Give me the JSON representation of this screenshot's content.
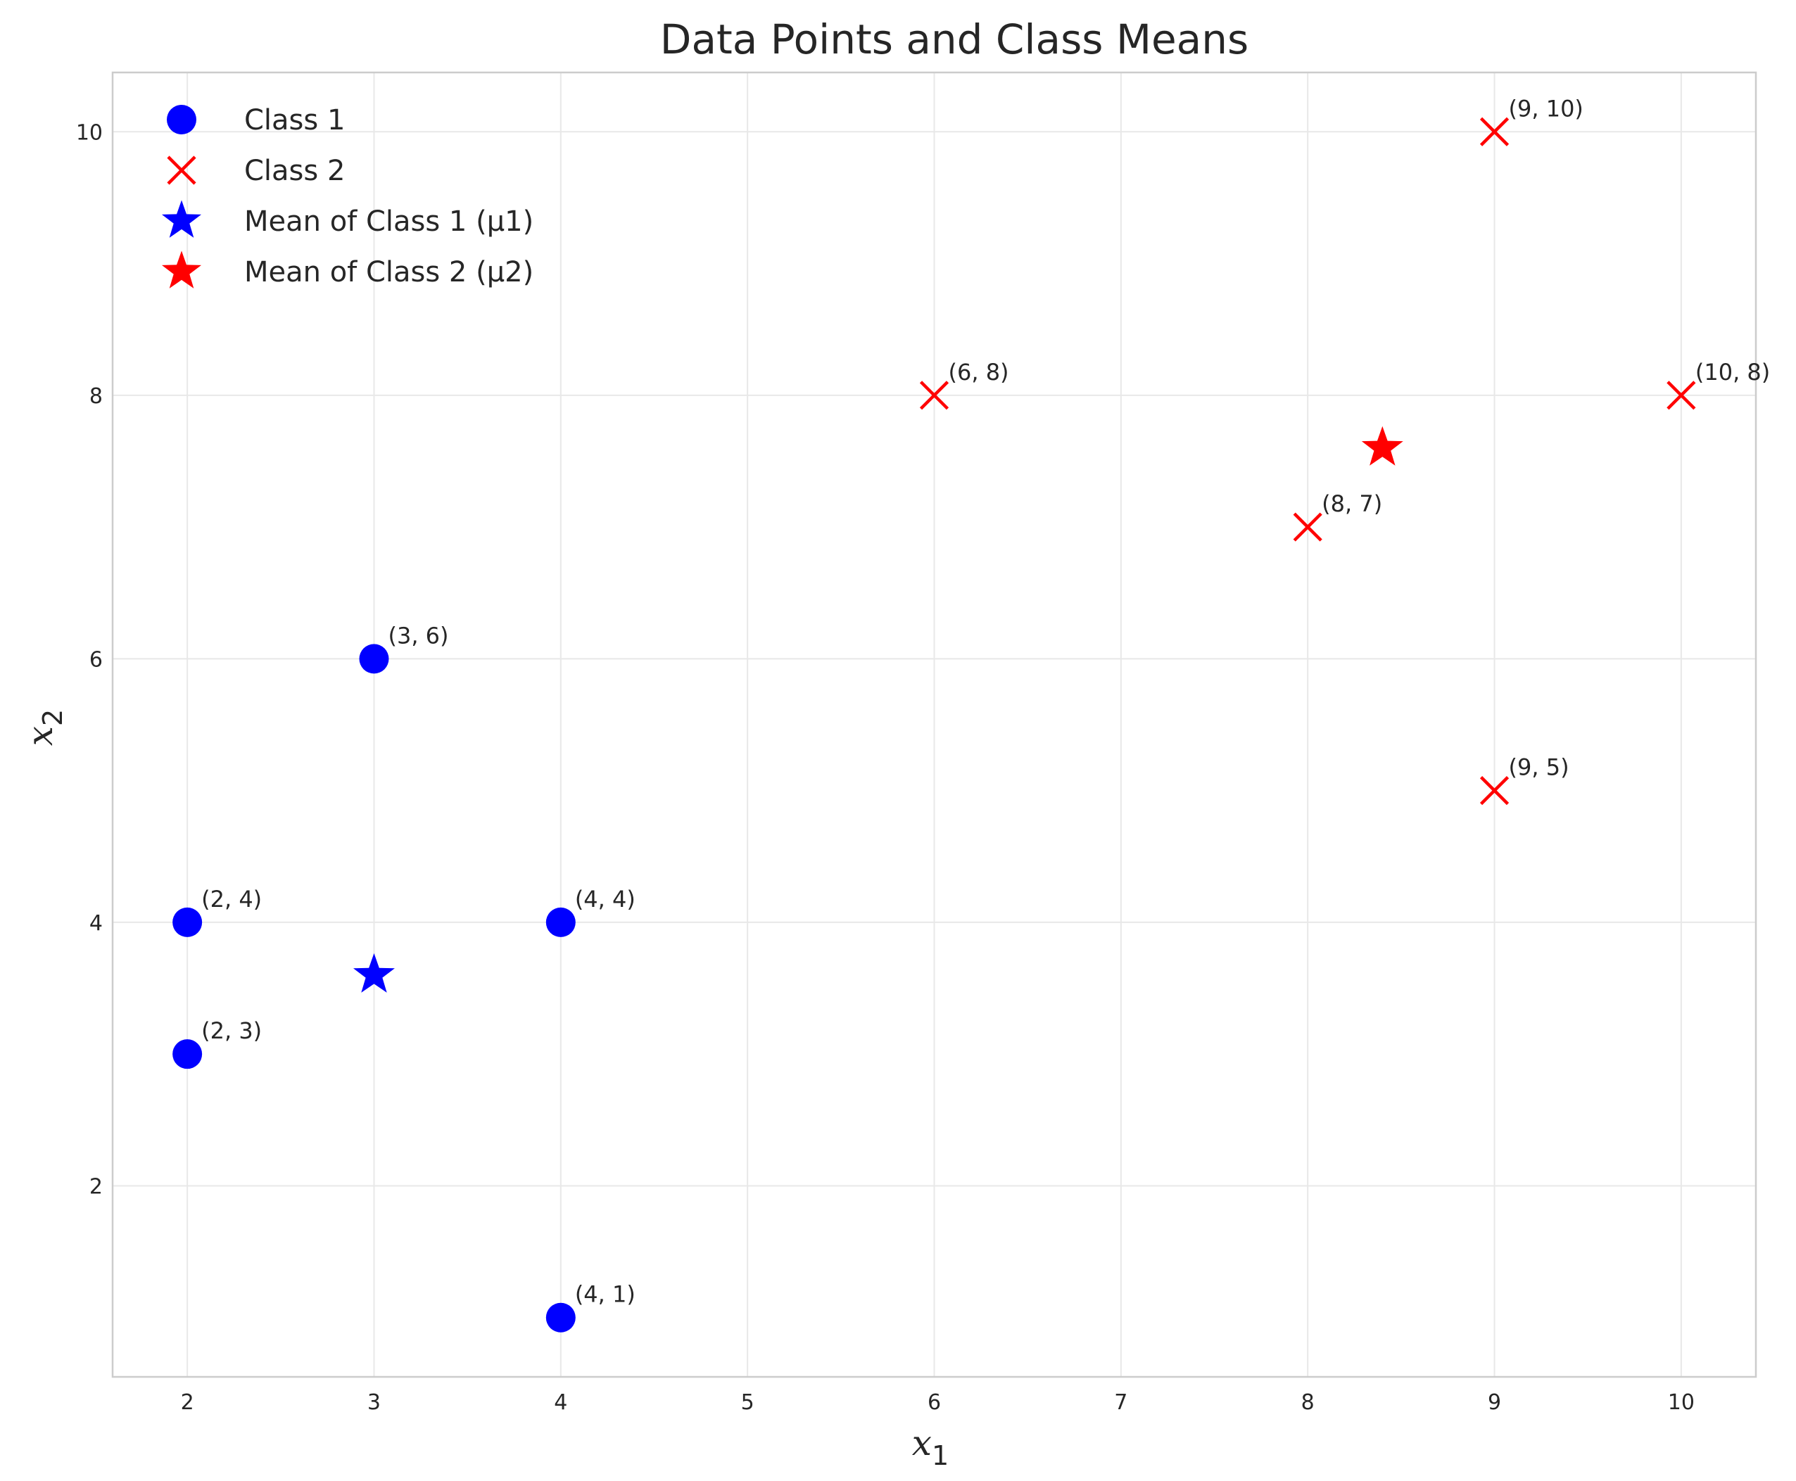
{
  "chart_data": {
    "type": "scatter",
    "title": "Data Points and Class Means",
    "xlabel": "x",
    "xlabel_sub": "1",
    "ylabel": "x",
    "ylabel_sub": "2",
    "xlim": [
      1.6,
      10.4
    ],
    "ylim": [
      0.55,
      10.45
    ],
    "xticks": [
      2,
      3,
      4,
      5,
      6,
      7,
      8,
      9,
      10
    ],
    "yticks": [
      2,
      4,
      6,
      8,
      10
    ],
    "grid": true,
    "legend_position": "top-left",
    "series": [
      {
        "name": "Class 1",
        "marker": "circle",
        "color": "#0000ff",
        "points": [
          [
            2,
            3
          ],
          [
            3,
            6
          ],
          [
            4,
            4
          ],
          [
            2,
            4
          ],
          [
            4,
            1
          ]
        ],
        "labels": [
          "(2, 3)",
          "(3, 6)",
          "(4, 4)",
          "(2, 4)",
          "(4, 1)"
        ]
      },
      {
        "name": "Class 2",
        "marker": "x",
        "color": "#ff0000",
        "points": [
          [
            9,
            10
          ],
          [
            6,
            8
          ],
          [
            9,
            5
          ],
          [
            8,
            7
          ],
          [
            10,
            8
          ]
        ],
        "labels": [
          "(9, 10)",
          "(6, 8)",
          "(9, 5)",
          "(8, 7)",
          "(10, 8)"
        ]
      },
      {
        "name": "Mean of Class 1 (μ1)",
        "marker": "star",
        "color": "#0000ff",
        "points": [
          [
            3,
            3.6
          ]
        ],
        "labels": [
          ""
        ]
      },
      {
        "name": "Mean of Class 2 (μ2)",
        "marker": "star",
        "color": "#ff0000",
        "points": [
          [
            8.4,
            7.6
          ]
        ],
        "labels": [
          ""
        ]
      }
    ]
  }
}
